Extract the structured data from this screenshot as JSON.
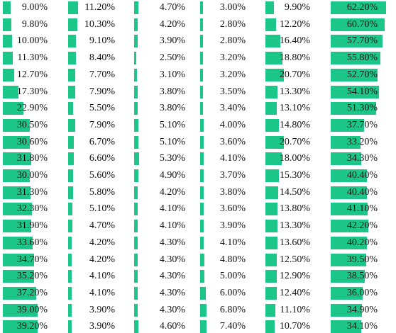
{
  "colors": {
    "bar": "#1cc688",
    "text": "#111111"
  },
  "columns": [
    {
      "id": "col1",
      "max": 70,
      "values": [
        "9.00%",
        "9.80%",
        "10.00%",
        "11.30%",
        "12.70%",
        "17.30%",
        "22.90%",
        "30.50%",
        "30.60%",
        "31.80%",
        "30.00%",
        "31.30%",
        "32.30%",
        "31.90%",
        "33.60%",
        "34.70%",
        "35.20%",
        "37.20%",
        "39.00%",
        "39.20%"
      ]
    },
    {
      "id": "col2",
      "max": 70,
      "values": [
        "11.20%",
        "10.30%",
        "9.10%",
        "8.40%",
        "7.70%",
        "7.90%",
        "5.50%",
        "7.90%",
        "6.70%",
        "6.60%",
        "5.60%",
        "5.80%",
        "5.10%",
        "4.70%",
        "4.20%",
        "4.20%",
        "4.10%",
        "4.10%",
        "3.90%",
        "3.90%"
      ]
    },
    {
      "id": "col3",
      "max": 70,
      "values": [
        "4.70%",
        "4.20%",
        "3.90%",
        "2.50%",
        "3.10%",
        "3.80%",
        "3.80%",
        "5.10%",
        "5.10%",
        "5.30%",
        "4.90%",
        "4.20%",
        "4.10%",
        "4.10%",
        "4.30%",
        "4.30%",
        "4.30%",
        "4.30%",
        "4.30%",
        "4.60%"
      ]
    },
    {
      "id": "col4",
      "max": 70,
      "values": [
        "3.00%",
        "2.80%",
        "2.80%",
        "3.20%",
        "3.20%",
        "3.50%",
        "3.40%",
        "4.00%",
        "3.60%",
        "4.10%",
        "3.70%",
        "3.80%",
        "3.60%",
        "3.90%",
        "4.10%",
        "4.80%",
        "5.00%",
        "6.00%",
        "6.80%",
        "7.40%"
      ]
    },
    {
      "id": "col5",
      "max": 70,
      "values": [
        "9.90%",
        "12.20%",
        "16.40%",
        "18.80%",
        "20.70%",
        "13.30%",
        "13.10%",
        "14.80%",
        "20.70%",
        "18.00%",
        "15.30%",
        "14.50%",
        "13.80%",
        "13.30%",
        "13.60%",
        "12.50%",
        "12.90%",
        "12.40%",
        "11.10%",
        "10.70%"
      ]
    },
    {
      "id": "col6",
      "max": 70,
      "values": [
        "62.20%",
        "60.70%",
        "57.70%",
        "55.80%",
        "52.70%",
        "54.10%",
        "51.30%",
        "37.70%",
        "33.20%",
        "34.30%",
        "40.40%",
        "40.40%",
        "41.10%",
        "42.20%",
        "40.20%",
        "39.50%",
        "38.50%",
        "36.00%",
        "34.90%",
        "34.10%"
      ]
    }
  ]
}
